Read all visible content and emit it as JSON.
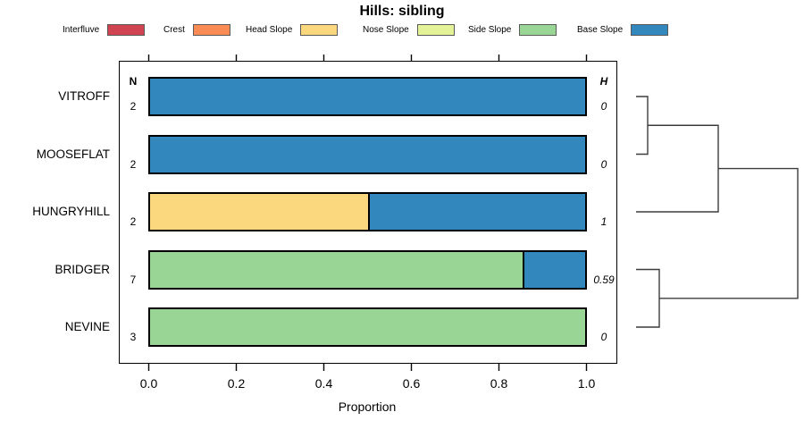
{
  "header": {
    "title": "Hills: sibling"
  },
  "legend": {
    "items": [
      {
        "key": "interfluve",
        "label": "Interfluve",
        "color": "#D04351"
      },
      {
        "key": "crest",
        "label": "Crest",
        "color": "#F98B55"
      },
      {
        "key": "head_slope",
        "label": "Head Slope",
        "color": "#FBD87E"
      },
      {
        "key": "nose_slope",
        "label": "Nose Slope",
        "color": "#E4F298"
      },
      {
        "key": "side_slope",
        "label": "Side Slope",
        "color": "#99D594"
      },
      {
        "key": "base_slope",
        "label": "Base Slope",
        "color": "#3288BD"
      }
    ]
  },
  "columns": {
    "n_header": "N",
    "h_header": "H"
  },
  "axis": {
    "xlabel": "Proportion",
    "tick_labels": [
      "0.0",
      "0.2",
      "0.4",
      "0.6",
      "0.8",
      "1.0"
    ]
  },
  "chart_data": {
    "type": "bar",
    "stacked": true,
    "orientation": "horizontal",
    "title": "Hills: sibling",
    "xlabel": "Proportion",
    "xlim": [
      0,
      1
    ],
    "x_ticks": [
      0.0,
      0.2,
      0.4,
      0.6,
      0.8,
      1.0
    ],
    "categories": [
      "VITROFF",
      "MOOSEFLAT",
      "HUNGRYHILL",
      "BRIDGER",
      "NEVINE"
    ],
    "classes": [
      "Interfluve",
      "Crest",
      "Head Slope",
      "Nose Slope",
      "Side Slope",
      "Base Slope"
    ],
    "rows": [
      {
        "label": "VITROFF",
        "n": "2",
        "h": "0",
        "segments": [
          {
            "class": "base_slope",
            "value": 1
          }
        ]
      },
      {
        "label": "MOOSEFLAT",
        "n": "2",
        "h": "0",
        "segments": [
          {
            "class": "base_slope",
            "value": 1
          }
        ]
      },
      {
        "label": "HUNGRYHILL",
        "n": "2",
        "h": "1",
        "segments": [
          {
            "class": "head_slope",
            "value": 0.5
          },
          {
            "class": "base_slope",
            "value": 0.5
          }
        ]
      },
      {
        "label": "BRIDGER",
        "n": "7",
        "h": "0.59",
        "segments": [
          {
            "class": "side_slope",
            "value": 0.857
          },
          {
            "class": "base_slope",
            "value": 0.143
          }
        ]
      },
      {
        "label": "NEVINE",
        "n": "3",
        "h": "0",
        "segments": [
          {
            "class": "side_slope",
            "value": 1
          }
        ]
      }
    ],
    "dendrogram": {
      "leaf_order": [
        "VITROFF",
        "MOOSEFLAT",
        "HUNGRYHILL",
        "BRIDGER",
        "NEVINE"
      ],
      "structure": [
        [
          [
            "VITROFF",
            "MOOSEFLAT"
          ],
          "HUNGRYHILL"
        ],
        [
          "BRIDGER",
          "NEVINE"
        ]
      ]
    }
  }
}
